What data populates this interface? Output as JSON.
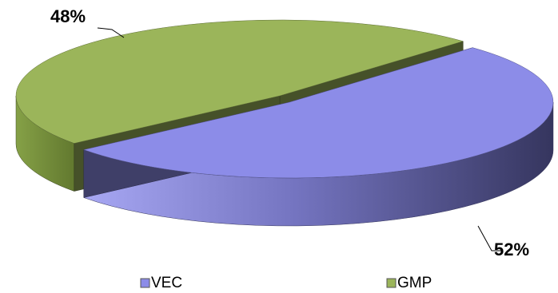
{
  "chart_data": {
    "type": "pie3d",
    "categories": [
      "VEC",
      "GMP"
    ],
    "values": [
      52,
      48
    ],
    "value_labels": [
      "52%",
      "48%"
    ],
    "colors": [
      "#8c8ce8",
      "#9bb55a"
    ],
    "legend": "bottom"
  }
}
